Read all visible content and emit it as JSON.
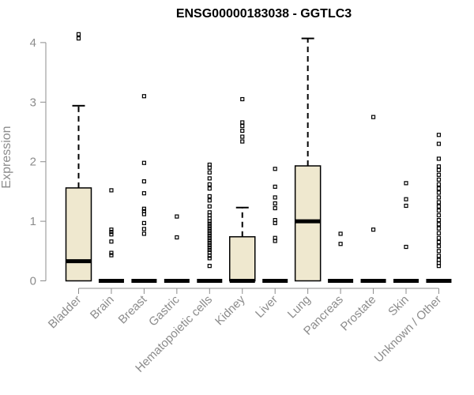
{
  "chart_data": {
    "type": "boxplot",
    "title": "ENSG00000183038 - GGTLC3",
    "ylabel": "Expression",
    "xlabel": "",
    "ylim": [
      0,
      4.2
    ],
    "yticks": [
      0,
      1,
      2,
      3,
      4
    ],
    "grid": false,
    "colors": {
      "box_fill": "#efe8cf",
      "box_stroke": "#000000",
      "axis": "#8c8c8c"
    },
    "categories": [
      "Bladder",
      "Brain",
      "Breast",
      "Gastric",
      "Hematopoietic cells",
      "Kidney",
      "Liver",
      "Lung",
      "Pancreas",
      "Prostate",
      "Skin",
      "Unknown / Other"
    ],
    "boxes": [
      {
        "category": "Bladder",
        "min": 0,
        "q1": 0,
        "median": 0.33,
        "q3": 1.56,
        "max": 2.94,
        "outliers": [
          4.07,
          4.14
        ]
      },
      {
        "category": "Brain",
        "min": 0,
        "q1": 0,
        "median": 0,
        "q3": 0,
        "max": 0,
        "outliers": [
          0.43,
          0.47,
          0.66,
          0.78,
          0.82,
          0.86,
          1.52
        ]
      },
      {
        "category": "Breast",
        "min": 0,
        "q1": 0,
        "median": 0,
        "q3": 0,
        "max": 0,
        "outliers": [
          0.79,
          0.87,
          0.97,
          1.12,
          1.17,
          1.21,
          1.47,
          1.67,
          1.98,
          3.1
        ]
      },
      {
        "category": "Gastric",
        "min": 0,
        "q1": 0,
        "median": 0,
        "q3": 0,
        "max": 0,
        "outliers": [
          0.73,
          1.08
        ]
      },
      {
        "category": "Hematopoietic cells",
        "min": 0,
        "q1": 0,
        "median": 0,
        "q3": 0,
        "max": 0,
        "outliers": [
          0.25,
          0.38,
          0.42,
          0.48,
          0.52,
          0.56,
          0.6,
          0.64,
          0.68,
          0.72,
          0.76,
          0.8,
          0.84,
          0.88,
          0.92,
          0.96,
          1.0,
          1.05,
          1.1,
          1.15,
          1.25,
          1.35,
          1.42,
          1.55,
          1.62,
          1.72,
          1.82,
          1.9,
          1.95
        ]
      },
      {
        "category": "Kidney",
        "min": 0,
        "q1": 0,
        "median": 0,
        "q3": 0.74,
        "max": 1.23,
        "outliers": [
          2.34,
          2.42,
          2.52,
          2.6,
          2.66,
          3.05
        ]
      },
      {
        "category": "Liver",
        "min": 0,
        "q1": 0,
        "median": 0,
        "q3": 0,
        "max": 0,
        "outliers": [
          0.67,
          0.72,
          0.97,
          1.02,
          1.22,
          1.3,
          1.4,
          1.58,
          1.88
        ]
      },
      {
        "category": "Lung",
        "min": 0,
        "q1": 0,
        "median": 1.0,
        "q3": 1.93,
        "max": 4.07,
        "outliers": []
      },
      {
        "category": "Pancreas",
        "min": 0,
        "q1": 0,
        "median": 0,
        "q3": 0,
        "max": 0,
        "outliers": [
          0.62,
          0.79
        ]
      },
      {
        "category": "Prostate",
        "min": 0,
        "q1": 0,
        "median": 0,
        "q3": 0,
        "max": 0,
        "outliers": [
          0.86,
          2.75
        ]
      },
      {
        "category": "Skin",
        "min": 0,
        "q1": 0,
        "median": 0,
        "q3": 0,
        "max": 0,
        "outliers": [
          0.57,
          1.26,
          1.37,
          1.64
        ]
      },
      {
        "category": "Unknown / Other",
        "min": 0,
        "q1": 0,
        "median": 0,
        "q3": 0,
        "max": 0,
        "outliers": [
          0.25,
          0.3,
          0.35,
          0.42,
          0.5,
          0.58,
          0.65,
          0.72,
          0.8,
          0.88,
          0.95,
          1.02,
          1.1,
          1.18,
          1.25,
          1.32,
          1.4,
          1.48,
          1.55,
          1.62,
          1.7,
          1.78,
          1.86,
          1.92,
          2.05,
          2.3,
          2.45
        ]
      }
    ]
  }
}
